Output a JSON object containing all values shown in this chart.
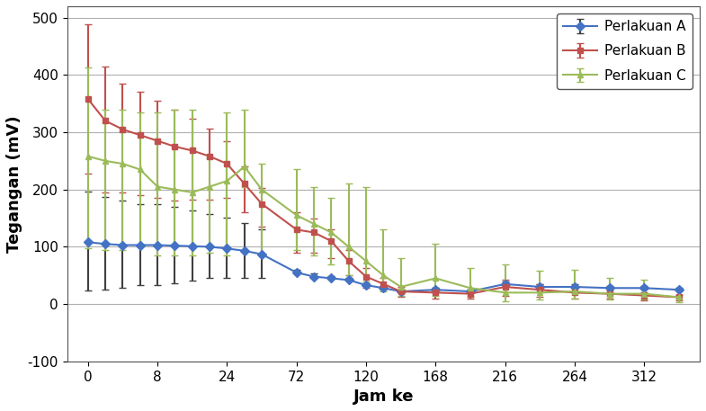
{
  "x_tick_labels": [
    "0",
    "8",
    "24",
    "72",
    "120",
    "168",
    "216",
    "264",
    "312"
  ],
  "x_positions": [
    0,
    1,
    2,
    3,
    4,
    5,
    6,
    7,
    8
  ],
  "series_A": {
    "label": "Perlakuan A",
    "color": "#4472C4",
    "ecolor": "#404040",
    "marker": "D",
    "x": [
      0,
      0.25,
      0.5,
      0.75,
      1.0,
      1.25,
      1.5,
      1.75,
      2.0,
      2.25,
      2.5,
      3.0,
      3.25,
      3.5,
      3.75,
      4.0,
      4.25,
      4.5,
      5.0,
      5.5,
      6.0,
      6.5,
      7.0,
      7.5,
      8.0,
      8.5
    ],
    "y": [
      108,
      105,
      103,
      103,
      103,
      102,
      101,
      100,
      97,
      93,
      87,
      55,
      48,
      45,
      42,
      33,
      28,
      22,
      25,
      22,
      35,
      30,
      30,
      28,
      28,
      25
    ],
    "yerr_low": [
      85,
      80,
      75,
      70,
      70,
      65,
      60,
      55,
      52,
      47,
      42,
      0,
      0,
      0,
      0,
      0,
      0,
      0,
      0,
      0,
      0,
      0,
      0,
      0,
      0,
      0
    ],
    "yerr_high": [
      88,
      82,
      78,
      72,
      72,
      67,
      62,
      57,
      54,
      49,
      44,
      5,
      5,
      4,
      4,
      4,
      4,
      4,
      4,
      4,
      4,
      4,
      4,
      4,
      4,
      4
    ]
  },
  "series_B": {
    "label": "Perlakuan B",
    "color": "#C0504D",
    "ecolor": "#C0504D",
    "marker": "s",
    "x": [
      0,
      0.25,
      0.5,
      0.75,
      1.0,
      1.25,
      1.5,
      1.75,
      2.0,
      2.25,
      2.5,
      3.0,
      3.25,
      3.5,
      3.75,
      4.0,
      4.25,
      4.5,
      5.0,
      5.5,
      6.0,
      6.5,
      7.0,
      7.5,
      8.0,
      8.5
    ],
    "y": [
      358,
      320,
      305,
      295,
      285,
      275,
      268,
      258,
      245,
      210,
      175,
      130,
      125,
      110,
      75,
      48,
      35,
      22,
      20,
      18,
      30,
      25,
      20,
      18,
      15,
      12
    ],
    "yerr_low": [
      130,
      125,
      110,
      105,
      100,
      95,
      85,
      75,
      60,
      50,
      40,
      40,
      35,
      30,
      25,
      20,
      10,
      10,
      10,
      8,
      15,
      12,
      10,
      8,
      8,
      5
    ],
    "yerr_high": [
      130,
      95,
      80,
      75,
      70,
      65,
      55,
      48,
      40,
      30,
      28,
      30,
      25,
      20,
      20,
      15,
      10,
      8,
      8,
      6,
      12,
      10,
      8,
      6,
      5,
      4
    ]
  },
  "series_C": {
    "label": "Perlakuan C",
    "color": "#9BBB59",
    "ecolor": "#9BBB59",
    "marker": "^",
    "x": [
      0,
      0.25,
      0.5,
      0.75,
      1.0,
      1.25,
      1.5,
      1.75,
      2.0,
      2.25,
      2.5,
      3.0,
      3.25,
      3.5,
      3.75,
      4.0,
      4.25,
      4.5,
      5.0,
      5.5,
      6.0,
      6.5,
      7.0,
      7.5,
      8.0,
      8.5
    ],
    "y": [
      258,
      250,
      245,
      235,
      205,
      200,
      195,
      205,
      215,
      240,
      200,
      155,
      140,
      125,
      100,
      75,
      50,
      30,
      45,
      28,
      20,
      20,
      22,
      18,
      18,
      12
    ],
    "yerr_low": [
      160,
      155,
      150,
      135,
      120,
      115,
      110,
      115,
      130,
      35,
      115,
      60,
      55,
      55,
      50,
      35,
      28,
      15,
      30,
      15,
      15,
      12,
      12,
      10,
      10,
      8
    ],
    "yerr_high": [
      155,
      90,
      95,
      100,
      130,
      140,
      145,
      50,
      120,
      100,
      45,
      80,
      65,
      60,
      110,
      130,
      80,
      50,
      60,
      35,
      50,
      38,
      38,
      28,
      25,
      15
    ]
  },
  "xlabel": "Jam ke",
  "ylabel": "Tegangan (mV)",
  "ylim": [
    -100,
    520
  ],
  "yticks": [
    -100,
    0,
    100,
    200,
    300,
    400,
    500
  ],
  "xlim": [
    -0.3,
    8.8
  ],
  "background_color": "#FFFFFF",
  "grid_color": "#B0B0B0",
  "tick_fontsize": 11,
  "label_fontsize": 13
}
